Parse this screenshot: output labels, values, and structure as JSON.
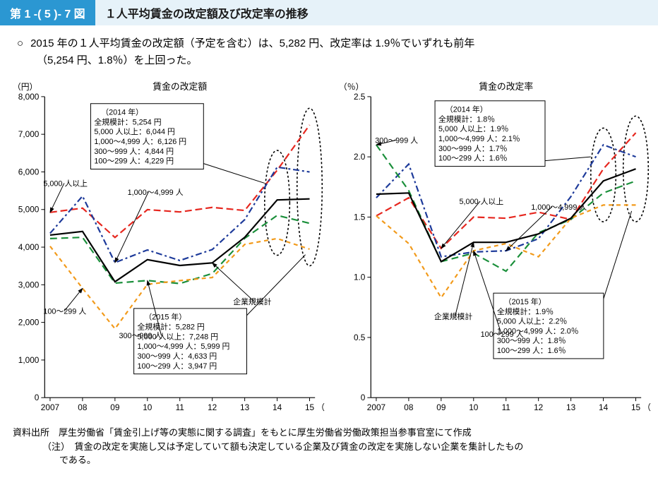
{
  "header": {
    "fig_number": "第 1 -( 5 )- 7 図",
    "fig_title": "１人平均賃金の改定額及び改定率の推移"
  },
  "summary": {
    "bullet": "○",
    "line1": "2015 年の１人平均賃金の改定額（予定を含む）は、5,282 円、改定率は 1.9％でいずれも前年",
    "line2": "（5,254 円、1.8％）を上回った。"
  },
  "years": [
    "2007",
    "08",
    "09",
    "10",
    "11",
    "12",
    "13",
    "14",
    "15"
  ],
  "colors": {
    "axis": "#000000",
    "grid": "#000000",
    "title": "#000000",
    "tick": "#000000",
    "all": "#000000",
    "g5000": "#e6261e",
    "g1000": "#1d3a9a",
    "g300": "#1a8f3a",
    "g100": "#f29a1a",
    "ellipse": "#000000",
    "annot_box_stroke": "#000000",
    "annot_box_fill": "#ffffff",
    "bg": "#ffffff"
  },
  "chart_left": {
    "title": "賃金の改定額",
    "y_unit": "（円）",
    "x_unit": "（年）",
    "y_min": 0,
    "y_max": 8000,
    "y_step": 1000,
    "y_ticks": [
      0,
      1000,
      2000,
      3000,
      4000,
      5000,
      6000,
      7000,
      8000
    ],
    "series": {
      "all": [
        4321,
        4417,
        3080,
        3667,
        3513,
        3582,
        4262,
        5254,
        5282
      ],
      "g5000": [
        4924,
        5037,
        4258,
        4997,
        4936,
        5056,
        4975,
        6044,
        7248
      ],
      "g1000": [
        4368,
        5356,
        3589,
        3925,
        3645,
        3937,
        4732,
        6126,
        5999
      ],
      "g300": [
        4228,
        4260,
        3044,
        3113,
        3032,
        3300,
        4235,
        4844,
        4633
      ],
      "g100": [
        4024,
        2906,
        1831,
        3012,
        3111,
        3193,
        4073,
        4229,
        3947
      ]
    },
    "series_labels": {
      "all": "企業規模計",
      "g5000": "5,000 人以上",
      "g1000": "1,000～4,999 人",
      "g300": "300～999 人",
      "g100": "100～299 人"
    },
    "point_annots": {
      "g5000": {
        "x_idx": 0,
        "label": "5,000 人以上"
      },
      "g1000": {
        "x_idx": 2,
        "label": "1,000～4,999 人"
      },
      "all": {
        "x_idx": 5,
        "label": "企業規模計"
      },
      "g300": {
        "x_idx": 3,
        "label": "300～999 人"
      },
      "g100": {
        "x_idx": 1,
        "label": "100～299 人"
      }
    },
    "ellipse_years_idx": [
      7,
      8
    ],
    "box_2014": {
      "title": "（2014 年）",
      "lines": [
        "全規模計：5,254 円",
        "5,000 人以上：6,044 円",
        "1,000～4,999 人：6,126 円",
        "300～999 人：4,844 円",
        "100～299 人：4,229 円"
      ]
    },
    "box_2015": {
      "title": "（2015 年）",
      "lines": [
        "全規模計：5,282 円",
        "5,000 人以上：7,248 円",
        "1,000～4,999 人：5,999 円",
        "300～999 人：4,633 円",
        "100～299 人：3,947 円"
      ]
    }
  },
  "chart_right": {
    "title": "賃金の改定率",
    "y_unit": "（％）",
    "x_unit": "（年）",
    "y_min": 0,
    "y_max": 2.5,
    "y_step": 0.5,
    "y_ticks": [
      0,
      0.5,
      1.0,
      1.5,
      2.0,
      2.5
    ],
    "series": {
      "all": [
        1.69,
        1.7,
        1.13,
        1.29,
        1.29,
        1.36,
        1.49,
        1.8,
        1.9
      ],
      "g5000": [
        1.51,
        1.66,
        1.24,
        1.5,
        1.49,
        1.54,
        1.48,
        1.9,
        2.2
      ],
      "g1000": [
        1.66,
        1.94,
        1.17,
        1.21,
        1.22,
        1.32,
        1.67,
        2.1,
        2.0
      ],
      "g300": [
        2.1,
        1.72,
        1.13,
        1.2,
        1.05,
        1.37,
        1.48,
        1.7,
        1.8
      ],
      "g100": [
        1.51,
        1.28,
        0.83,
        1.22,
        1.28,
        1.17,
        1.49,
        1.6,
        1.6
      ]
    },
    "series_labels": {
      "all": "企業規模計",
      "g5000": "5,000 人以上",
      "g1000": "1,000～4,999 人",
      "g300": "300～999 人",
      "g100": "100～299 人"
    },
    "point_annots": {
      "g300": {
        "x_idx": 0,
        "label": "300～999 人"
      },
      "g5000": {
        "x_idx": 2,
        "label": "5,000 人以上"
      },
      "g1000": {
        "x_idx": 4,
        "label": "1,000～4,999 人"
      },
      "all": {
        "x_idx": 3,
        "label": "企業規模計"
      },
      "g100": {
        "x_idx": 3,
        "label": "100～299 人"
      }
    },
    "ellipse_years_idx": [
      7,
      8
    ],
    "box_2014": {
      "title": "（2014 年）",
      "lines": [
        "全規模計：1.8％",
        "5,000 人以上：1.9％",
        "1,000～4,999 人：2.1％",
        "300～999 人：1.7％",
        "100～299 人：1.6％"
      ]
    },
    "box_2015": {
      "title": "（2015 年）",
      "lines": [
        "全規模計：1.9％",
        "5,000 人以上：2.2％",
        "1,000～4,999 人：2.0％",
        "300～999 人：1.8％",
        "100～299 人：1.6％"
      ]
    }
  },
  "styles": {
    "line_width": 2.2,
    "axis_width": 1.2,
    "dash": {
      "all": "",
      "g5000": "10 5",
      "g1000": "9 4 3 4",
      "g300": "10 6",
      "g100": "6 5"
    },
    "ellipse_dash": "3 3",
    "ellipse_width": 1.6,
    "annot_fontsize": 11,
    "axis_fontsize": 12,
    "title_fontsize": 13,
    "box_fontsize": 11
  },
  "source": {
    "line1": "資料出所　厚生労働省「賃金引上げ等の実態に関する調査」をもとに厚生労働省労働政策担当参事官室にて作成",
    "line2a": "（注）　賃金の改定を実施し又は予定していて額も決定している企業及び賃金の改定を実施しない企業を集計したもの",
    "line2b": "である。"
  }
}
